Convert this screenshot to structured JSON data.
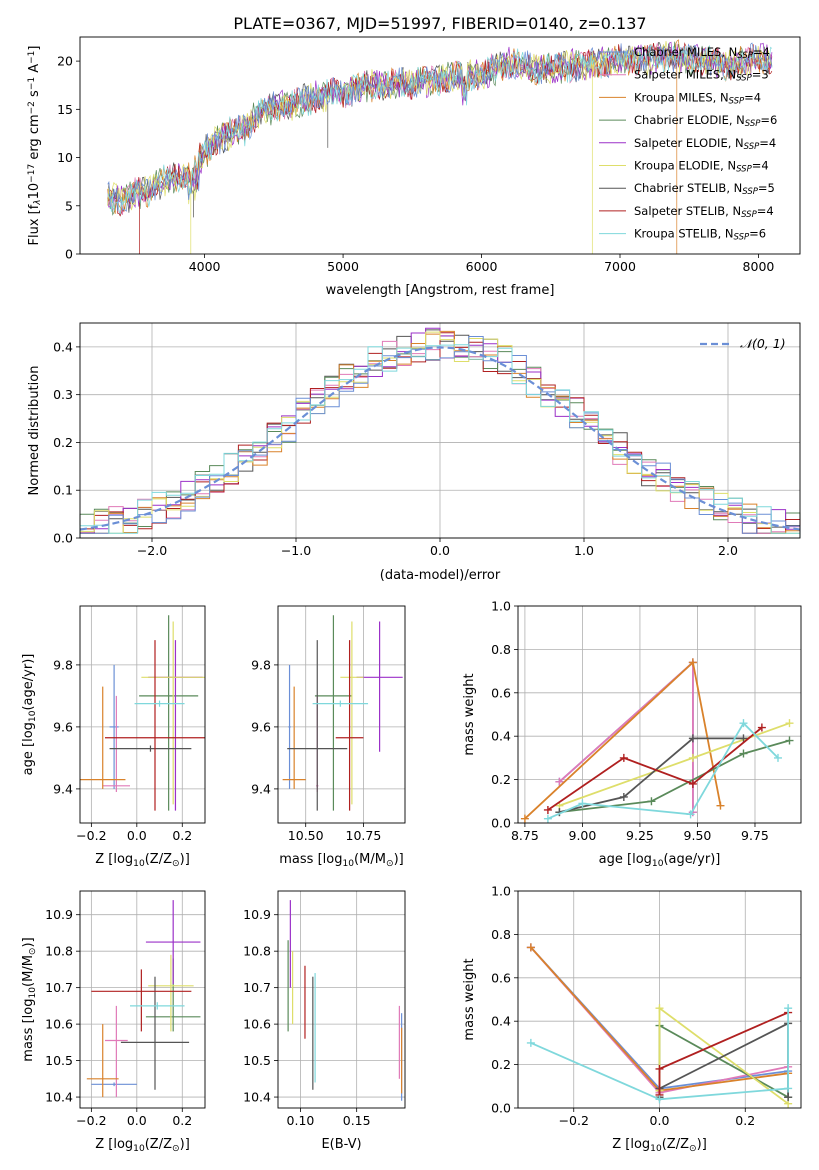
{
  "figure": {
    "title": "PLATE=0367, MJD=51997, FIBERID=0140, z=0.137"
  },
  "legend_models": [
    {
      "label": "Chabrier MILES, N",
      "sub": "SSP",
      "tail": "=4",
      "color": "#6b8fd6"
    },
    {
      "label": "Salpeter MILES, N",
      "sub": "SSP",
      "tail": "=3",
      "color": "#e07ab8"
    },
    {
      "label": "Kroupa MILES, N",
      "sub": "SSP",
      "tail": "=4",
      "color": "#d9822b"
    },
    {
      "label": "Chabrier ELODIE, N",
      "sub": "SSP",
      "tail": "=6",
      "color": "#5a8a5a"
    },
    {
      "label": "Salpeter ELODIE, N",
      "sub": "SSP",
      "tail": "=4",
      "color": "#9b30c8"
    },
    {
      "label": "Kroupa ELODIE, N",
      "sub": "SSP",
      "tail": "=4",
      "color": "#dede6a"
    },
    {
      "label": "Chabrier STELIB, N",
      "sub": "SSP",
      "tail": "=5",
      "color": "#555555"
    },
    {
      "label": "Salpeter STELIB, N",
      "sub": "SSP",
      "tail": "=4",
      "color": "#b02020"
    },
    {
      "label": "Kroupa STELIB, N",
      "sub": "SSP",
      "tail": "=6",
      "color": "#7fd8dc"
    }
  ],
  "chart_data": [
    {
      "id": "spectrum",
      "type": "line",
      "xlabel": "wavelength [Angstrom, rest frame]",
      "ylabel_parts": [
        "Flux [f",
        "λ",
        "10",
        "−17",
        " erg cm",
        "−2",
        " s",
        "−1",
        " A",
        "−1",
        "]"
      ],
      "xlim": [
        3100,
        8300
      ],
      "ylim": [
        0,
        22.5
      ],
      "xticks": [
        4000,
        5000,
        6000,
        7000,
        8000
      ],
      "yticks": [
        0,
        5,
        10,
        15,
        20
      ],
      "envelope": {
        "x": [
          3300,
          3400,
          3500,
          3600,
          3700,
          3800,
          3900,
          4000,
          4100,
          4200,
          4300,
          4400,
          4500,
          4600,
          4800,
          5000,
          5200,
          5400,
          5600,
          5800,
          6000,
          6200,
          6400,
          6600,
          6800,
          7000,
          7200,
          7400,
          7600,
          7800,
          8000,
          8100
        ],
        "y": [
          5.8,
          5.6,
          6.2,
          6.5,
          7.5,
          8.0,
          8.6,
          10.5,
          12.0,
          12.6,
          13.0,
          14.8,
          15.2,
          15.2,
          16.3,
          16.8,
          17.5,
          17.6,
          18.0,
          18.4,
          18.6,
          19.8,
          19.2,
          19.4,
          19.7,
          20.2,
          20.3,
          20.6,
          20.0,
          19.6,
          20.3,
          20.0
        ]
      },
      "spikes": [
        {
          "x": 3530,
          "y": 0,
          "series": 7
        },
        {
          "x": 3900,
          "y": 0,
          "series": 5
        },
        {
          "x": 3920,
          "y": 3.8,
          "series": 6
        },
        {
          "x": 4890,
          "y": 11.0,
          "series": 6
        },
        {
          "x": 5880,
          "y": 16.5,
          "series": 6
        },
        {
          "x": 6800,
          "y": 0,
          "series": 5
        },
        {
          "x": 7410,
          "y": 0,
          "series": 2
        }
      ]
    },
    {
      "id": "residuals",
      "type": "histogram",
      "xlabel": "(data-model)/error",
      "ylabel": "Normed distribution",
      "xlim": [
        -2.5,
        2.5
      ],
      "ylim": [
        0,
        0.45
      ],
      "xticks": [
        -2,
        -1,
        0,
        1,
        2
      ],
      "yticks": [
        0.0,
        0.1,
        0.2,
        0.3,
        0.4
      ],
      "reference_curve": {
        "name": "𝒩(0, 1)",
        "color": "#6b8fd6",
        "mean": 0,
        "sigma": 1
      },
      "bins": 50
    },
    {
      "id": "age_vs_Z",
      "type": "errorbar",
      "xlabel_parts": [
        "Z [log",
        "10",
        "(Z/Z",
        "⊙",
        ")]"
      ],
      "ylabel_parts": [
        "age  [log",
        "10",
        "(age/yr)]"
      ],
      "xlim": [
        -0.25,
        0.3
      ],
      "ylim": [
        9.29,
        9.99
      ],
      "xticks": [
        -0.2,
        0.0,
        0.2
      ],
      "yticks": [
        9.4,
        9.6,
        9.8
      ],
      "points": [
        {
          "x": -0.1,
          "xerr": 0.02,
          "y": 9.6,
          "ylo": 9.4,
          "yhi": 9.8,
          "series": 0
        },
        {
          "x": -0.09,
          "xerr": 0.06,
          "y": 9.41,
          "ylo": 9.39,
          "yhi": 9.7,
          "series": 1
        },
        {
          "x": -0.15,
          "xerr": 0.1,
          "y": 9.43,
          "ylo": 9.4,
          "yhi": 9.73,
          "series": 2
        },
        {
          "x": 0.14,
          "xerr": 0.13,
          "y": 9.7,
          "ylo": 9.33,
          "yhi": 9.96,
          "series": 3
        },
        {
          "x": 0.17,
          "xerr": 0.12,
          "y": 9.76,
          "ylo": 9.33,
          "yhi": 9.88,
          "series": 4
        },
        {
          "x": 0.16,
          "xerr": 0.14,
          "y": 9.76,
          "ylo": 9.35,
          "yhi": 9.94,
          "series": 5
        },
        {
          "x": 0.06,
          "xerr": 0.18,
          "y": 9.53,
          "ylo": 9.52,
          "yhi": 9.54,
          "series": 6
        },
        {
          "x": 0.08,
          "xerr": 0.22,
          "y": 9.565,
          "ylo": 9.33,
          "yhi": 9.88,
          "series": 7
        },
        {
          "x": 0.1,
          "xerr": 0.11,
          "y": 9.675,
          "ylo": 9.665,
          "yhi": 9.685,
          "series": 8
        }
      ]
    },
    {
      "id": "age_vs_mass",
      "type": "errorbar",
      "xlabel_parts": [
        "mass [log",
        "10",
        "(M/M",
        "⊙",
        ")]"
      ],
      "xlim": [
        10.38,
        10.93
      ],
      "ylim": [
        9.29,
        9.99
      ],
      "xticks": [
        10.5,
        10.75
      ],
      "xtick_labels": [
        "10.50",
        "10.75"
      ],
      "yticks": [
        9.4,
        9.6,
        9.8
      ],
      "points": [
        {
          "x": 10.43,
          "xerr": 0.005,
          "y": 9.6,
          "ylo": 9.4,
          "yhi": 9.8,
          "series": 0
        },
        {
          "x": 10.55,
          "xerr": 0.005,
          "y": 9.41,
          "ylo": 9.39,
          "yhi": 9.7,
          "series": 1
        },
        {
          "x": 10.45,
          "xerr": 0.05,
          "y": 9.43,
          "ylo": 9.4,
          "yhi": 9.73,
          "series": 2
        },
        {
          "x": 10.62,
          "xerr": 0.08,
          "y": 9.7,
          "ylo": 9.33,
          "yhi": 9.96,
          "series": 3
        },
        {
          "x": 10.82,
          "xerr": 0.1,
          "y": 9.76,
          "ylo": 9.52,
          "yhi": 9.94,
          "series": 4
        },
        {
          "x": 10.7,
          "xerr": 0.05,
          "y": 9.76,
          "ylo": 9.35,
          "yhi": 9.94,
          "series": 5
        },
        {
          "x": 10.55,
          "xerr": 0.13,
          "y": 9.53,
          "ylo": 9.33,
          "yhi": 9.88,
          "series": 6
        },
        {
          "x": 10.69,
          "xerr": 0.06,
          "y": 9.565,
          "ylo": 9.33,
          "yhi": 9.88,
          "series": 7
        },
        {
          "x": 10.65,
          "xerr": 0.12,
          "y": 9.675,
          "ylo": 9.665,
          "yhi": 9.685,
          "series": 8
        }
      ]
    },
    {
      "id": "weight_vs_age",
      "type": "line",
      "xlabel_parts": [
        "age  [log",
        "10",
        "(age/yr)]"
      ],
      "ylabel": "mass weight",
      "xlim": [
        8.72,
        9.95
      ],
      "ylim": [
        0,
        1
      ],
      "xticks": [
        8.75,
        9.0,
        9.25,
        9.5,
        9.75
      ],
      "xtick_labels": [
        "8.75",
        "9.00",
        "9.25",
        "9.50",
        "9.75"
      ],
      "yticks": [
        0.0,
        0.2,
        0.4,
        0.6,
        0.8,
        1.0
      ],
      "series": [
        {
          "series": 0,
          "x": [
            8.9,
            9.48,
            9.48
          ],
          "y": [
            0.19,
            0.74,
            0.05
          ]
        },
        {
          "series": 1,
          "x": [
            8.9,
            9.48,
            9.48
          ],
          "y": [
            0.19,
            0.74,
            0.05
          ]
        },
        {
          "series": 2,
          "x": [
            8.75,
            9.48,
            9.6
          ],
          "y": [
            0.02,
            0.74,
            0.08
          ]
        },
        {
          "series": 3,
          "x": [
            8.9,
            9.3,
            9.7,
            9.9
          ],
          "y": [
            0.05,
            0.1,
            0.32,
            0.38
          ]
        },
        {
          "series": 5,
          "x": [
            8.9,
            9.48,
            9.9
          ],
          "y": [
            0.08,
            0.3,
            0.46
          ]
        },
        {
          "series": 6,
          "x": [
            8.9,
            9.18,
            9.48,
            9.7
          ],
          "y": [
            0.05,
            0.12,
            0.39,
            0.39
          ]
        },
        {
          "series": 7,
          "x": [
            8.85,
            9.18,
            9.48,
            9.78
          ],
          "y": [
            0.06,
            0.3,
            0.18,
            0.44
          ]
        },
        {
          "series": 8,
          "x": [
            8.85,
            9.0,
            9.47,
            9.7,
            9.85
          ],
          "y": [
            0.02,
            0.09,
            0.04,
            0.46,
            0.3
          ]
        }
      ]
    },
    {
      "id": "mass_vs_Z",
      "type": "errorbar",
      "xlabel_parts": [
        "Z [log",
        "10",
        "(Z/Z",
        "⊙",
        ")]"
      ],
      "ylabel_parts": [
        "mass [log",
        "10",
        "(M/M",
        "⊙",
        ")]"
      ],
      "xlim": [
        -0.25,
        0.3
      ],
      "ylim": [
        10.37,
        10.965
      ],
      "xticks": [
        -0.2,
        0.0,
        0.2
      ],
      "yticks": [
        10.4,
        10.5,
        10.6,
        10.7,
        10.8,
        10.9
      ],
      "points": [
        {
          "x": -0.1,
          "xerr": 0.1,
          "y": 10.435,
          "ylo": 10.43,
          "yhi": 10.44,
          "series": 0
        },
        {
          "x": -0.09,
          "xerr": 0.05,
          "y": 10.555,
          "ylo": 10.4,
          "yhi": 10.65,
          "series": 1
        },
        {
          "x": -0.15,
          "xerr": 0.07,
          "y": 10.45,
          "ylo": 10.4,
          "yhi": 10.6,
          "series": 2
        },
        {
          "x": 0.16,
          "xerr": 0.12,
          "y": 10.62,
          "ylo": 10.58,
          "yhi": 10.78,
          "series": 3
        },
        {
          "x": 0.16,
          "xerr": 0.12,
          "y": 10.825,
          "ylo": 10.71,
          "yhi": 10.94,
          "series": 4
        },
        {
          "x": 0.15,
          "xerr": 0.1,
          "y": 10.705,
          "ylo": 10.58,
          "yhi": 10.79,
          "series": 5
        },
        {
          "x": 0.08,
          "xerr": 0.15,
          "y": 10.55,
          "ylo": 10.42,
          "yhi": 10.73,
          "series": 6
        },
        {
          "x": 0.02,
          "xerr": 0.22,
          "y": 10.69,
          "ylo": 10.58,
          "yhi": 10.75,
          "series": 7
        },
        {
          "x": 0.09,
          "xerr": 0.12,
          "y": 10.65,
          "ylo": 10.64,
          "yhi": 10.66,
          "series": 8
        }
      ]
    },
    {
      "id": "mass_vs_ebv",
      "type": "errorbar",
      "xlabel": "E(B-V)",
      "xlim": [
        0.08,
        0.193
      ],
      "ylim": [
        10.37,
        10.965
      ],
      "xticks": [
        0.1,
        0.15
      ],
      "xtick_labels": [
        "0.10",
        "0.15"
      ],
      "yticks": [
        10.4,
        10.5,
        10.6,
        10.7,
        10.8,
        10.9
      ],
      "points": [
        {
          "x": 0.19,
          "y": 10.51,
          "ylo": 10.39,
          "yhi": 10.63,
          "series": 0
        },
        {
          "x": 0.188,
          "y": 10.55,
          "ylo": 10.45,
          "yhi": 10.65,
          "series": 1
        },
        {
          "x": 0.19,
          "y": 10.48,
          "ylo": 10.41,
          "yhi": 10.59,
          "series": 2
        },
        {
          "x": 0.089,
          "y": 10.71,
          "ylo": 10.58,
          "yhi": 10.83,
          "series": 3
        },
        {
          "x": 0.091,
          "y": 10.82,
          "ylo": 10.7,
          "yhi": 10.94,
          "series": 4
        },
        {
          "x": 0.093,
          "y": 10.7,
          "ylo": 10.6,
          "yhi": 10.8,
          "series": 5
        },
        {
          "x": 0.111,
          "y": 10.58,
          "ylo": 10.42,
          "yhi": 10.73,
          "series": 6
        },
        {
          "x": 0.104,
          "y": 10.66,
          "ylo": 10.56,
          "yhi": 10.76,
          "series": 7
        },
        {
          "x": 0.113,
          "y": 10.59,
          "ylo": 10.44,
          "yhi": 10.74,
          "series": 8
        }
      ]
    },
    {
      "id": "weight_vs_Z",
      "type": "line",
      "xlabel_parts": [
        "Z [log",
        "10",
        "(Z/Z",
        "⊙",
        ")]"
      ],
      "ylabel": "mass weight",
      "xlim": [
        -0.33,
        0.33
      ],
      "ylim": [
        0,
        1
      ],
      "xticks": [
        -0.2,
        0.0,
        0.2
      ],
      "xtick_labels": [
        "−0.2",
        "0.0",
        "0.2"
      ],
      "yticks": [
        0.0,
        0.2,
        0.4,
        0.6,
        0.8,
        1.0
      ],
      "series": [
        {
          "series": 0,
          "x": [
            -0.3,
            0.0,
            0.3
          ],
          "y": [
            0.74,
            0.09,
            0.17
          ]
        },
        {
          "series": 1,
          "x": [
            -0.3,
            0.0,
            0.3
          ],
          "y": [
            0.74,
            0.07,
            0.19
          ]
        },
        {
          "series": 2,
          "x": [
            -0.3,
            0.0,
            0.3
          ],
          "y": [
            0.74,
            0.08,
            0.16
          ]
        },
        {
          "series": 3,
          "x": [
            0.0,
            0.0,
            0.3
          ],
          "y": [
            0.05,
            0.38,
            0.05
          ]
        },
        {
          "series": 5,
          "x": [
            0.0,
            0.0,
            0.3
          ],
          "y": [
            0.08,
            0.46,
            0.02
          ]
        },
        {
          "series": 6,
          "x": [
            0.0,
            0.0,
            0.3,
            0.3
          ],
          "y": [
            0.05,
            0.09,
            0.39,
            0.05
          ]
        },
        {
          "series": 7,
          "x": [
            0.0,
            0.0,
            0.3
          ],
          "y": [
            0.06,
            0.18,
            0.44
          ]
        },
        {
          "series": 8,
          "x": [
            -0.3,
            0.0,
            0.3,
            0.3
          ],
          "y": [
            0.3,
            0.04,
            0.09,
            0.46
          ]
        }
      ]
    }
  ]
}
